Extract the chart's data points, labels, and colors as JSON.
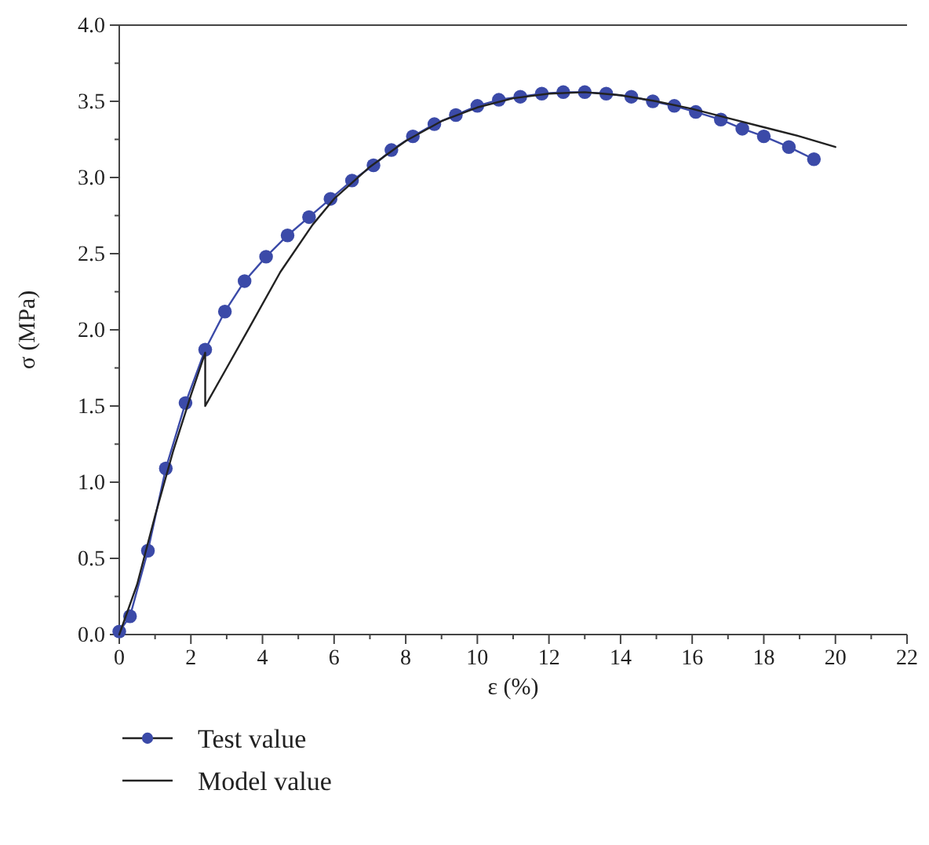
{
  "chart_data": {
    "type": "line",
    "xlabel": "ε (%)",
    "ylabel": "σ (MPa)",
    "xlim": [
      0,
      22
    ],
    "xticks": [
      0,
      2,
      4,
      6,
      8,
      10,
      12,
      14,
      16,
      18,
      20,
      22
    ],
    "ylim": [
      0,
      4
    ],
    "yticks": [
      {
        "value": 0,
        "label": "0.0"
      },
      {
        "value": 0.5,
        "label": "0.5"
      },
      {
        "value": 1,
        "label": "1.0"
      },
      {
        "value": 1.5,
        "label": "1.5"
      },
      {
        "value": 2,
        "label": "2.0"
      },
      {
        "value": 2.5,
        "label": "2.5"
      },
      {
        "value": 3,
        "label": "3.0"
      },
      {
        "value": 3.5,
        "label": "3.5"
      },
      {
        "value": 4,
        "label": "4.0"
      }
    ],
    "legend": "bottom",
    "grid": false,
    "series": [
      {
        "name": "Test value",
        "color": "#3b4aa8",
        "marker": "circle",
        "x": [
          0,
          0.3,
          0.8,
          1.3,
          1.85,
          2.4,
          2.95,
          3.5,
          4.1,
          4.7,
          5.3,
          5.9,
          6.5,
          7.1,
          7.6,
          8.2,
          8.8,
          9.4,
          10,
          10.6,
          11.2,
          11.8,
          12.4,
          13,
          13.6,
          14.3,
          14.9,
          15.5,
          16.1,
          16.8,
          17.4,
          18,
          18.7,
          19.4
        ],
        "values": [
          0.02,
          0.12,
          0.55,
          1.09,
          1.52,
          1.87,
          2.12,
          2.32,
          2.48,
          2.62,
          2.74,
          2.86,
          2.98,
          3.08,
          3.18,
          3.27,
          3.35,
          3.41,
          3.47,
          3.51,
          3.53,
          3.55,
          3.56,
          3.56,
          3.55,
          3.53,
          3.5,
          3.47,
          3.43,
          3.38,
          3.32,
          3.27,
          3.2,
          3.12
        ]
      },
      {
        "name": "Model value",
        "color": "#222222",
        "marker": "none",
        "x": [
          0,
          0.5,
          1,
          1.5,
          2,
          2.4,
          2.4,
          3,
          3.67,
          4.5,
          5.4,
          6,
          7,
          8,
          9,
          10,
          11,
          12,
          13,
          14,
          15,
          16,
          17,
          18,
          19,
          20
        ],
        "values": [
          0,
          0.33,
          0.78,
          1.2,
          1.57,
          1.85,
          1.5,
          1.75,
          2.03,
          2.38,
          2.69,
          2.86,
          3.07,
          3.24,
          3.37,
          3.46,
          3.52,
          3.55,
          3.56,
          3.54,
          3.5,
          3.45,
          3.39,
          3.33,
          3.27,
          3.2
        ]
      }
    ]
  }
}
